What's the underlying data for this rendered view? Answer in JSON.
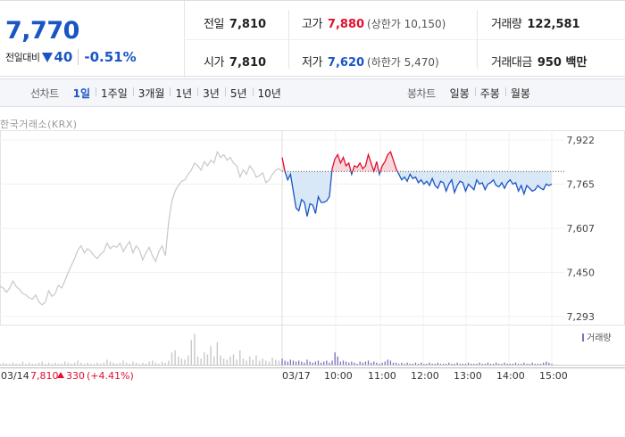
{
  "quote": {
    "price": "7,770",
    "change_label": "전일대비",
    "change": "40",
    "change_pct": "-0.51%"
  },
  "stats": {
    "prev_close": {
      "label": "전일",
      "value": "7,810"
    },
    "high": {
      "label": "고가",
      "value": "7,880",
      "sub": "(상한가 10,150)"
    },
    "volume": {
      "label": "거래량",
      "value": "122,581"
    },
    "open": {
      "label": "시가",
      "value": "7,810"
    },
    "low": {
      "label": "저가",
      "value": "7,620",
      "sub": "(하한가 5,470)"
    },
    "turnover": {
      "label": "거래대금",
      "value": "950 백만"
    }
  },
  "tabs": {
    "line_title": "선차트",
    "line_items": [
      "1일",
      "1주일",
      "3개월",
      "1년",
      "3년",
      "5년",
      "10년"
    ],
    "line_active": "1일",
    "candle_title": "봉차트",
    "candle_items": [
      "일봉",
      "주봉",
      "월봉"
    ]
  },
  "chart": {
    "source_label": "한국거래소(KRX)",
    "volume_legend": "거래량",
    "prev_day_info": {
      "date": "03/14",
      "price": "7,810",
      "change": "330",
      "pct": "(+4.41%)"
    },
    "colors": {
      "up": "#e0102e",
      "down": "#1a55c4",
      "prev_day": "#c8c8c8",
      "fill_down": "#d5e5f5",
      "fill_up": "#f8d7dc"
    }
  },
  "chart_data": {
    "type": "line",
    "title": "",
    "ylim": [
      7293,
      7922
    ],
    "yticks": [
      "7,922",
      "7,765",
      "7,607",
      "7,450",
      "7,293"
    ],
    "ytick_values": [
      7922,
      7765,
      7607,
      7450,
      7293
    ],
    "xticks": [
      "03/14",
      "03/17",
      "10:00",
      "11:00",
      "12:00",
      "13:00",
      "14:00",
      "15:00"
    ],
    "reference_price": 7810,
    "series": [
      {
        "name": "03/14",
        "values": [
          7400,
          7395,
          7380,
          7395,
          7420,
          7400,
          7390,
          7375,
          7370,
          7360,
          7355,
          7370,
          7345,
          7335,
          7345,
          7385,
          7365,
          7375,
          7405,
          7395,
          7420,
          7450,
          7475,
          7500,
          7530,
          7545,
          7520,
          7535,
          7525,
          7510,
          7500,
          7515,
          7525,
          7555,
          7535,
          7545,
          7540,
          7555,
          7525,
          7545,
          7560,
          7520,
          7545,
          7530,
          7495,
          7520,
          7540,
          7510,
          7490,
          7525,
          7545,
          7510,
          7630,
          7705,
          7740,
          7760,
          7775,
          7780,
          7800,
          7815,
          7840,
          7830,
          7815,
          7845,
          7830,
          7850,
          7840,
          7880,
          7860,
          7870,
          7850,
          7860,
          7840,
          7830,
          7790,
          7815,
          7800,
          7830,
          7815,
          7790,
          7795,
          7805,
          7770,
          7780,
          7800,
          7815,
          7820,
          7810
        ]
      },
      {
        "name": "03/17",
        "values": [
          7860,
          7810,
          7780,
          7800,
          7740,
          7680,
          7670,
          7710,
          7700,
          7650,
          7695,
          7690,
          7660,
          7720,
          7700,
          7700,
          7705,
          7720,
          7820,
          7855,
          7870,
          7840,
          7860,
          7830,
          7840,
          7800,
          7830,
          7825,
          7840,
          7820,
          7830,
          7870,
          7840,
          7810,
          7845,
          7800,
          7830,
          7845,
          7870,
          7880,
          7850,
          7820,
          7800,
          7780,
          7790,
          7775,
          7800,
          7785,
          7790,
          7770,
          7780,
          7765,
          7775,
          7760,
          7785,
          7760,
          7750,
          7775,
          7770,
          7740,
          7765,
          7780,
          7735,
          7760,
          7775,
          7770,
          7740,
          7765,
          7755,
          7745,
          7780,
          7765,
          7770,
          7745,
          7765,
          7770,
          7780,
          7760,
          7755,
          7770,
          7750,
          7770,
          7780,
          7765,
          7770,
          7740,
          7760,
          7730,
          7760,
          7750,
          7740,
          7745,
          7760,
          7750,
          7745,
          7765,
          7760,
          7765
        ]
      }
    ],
    "volume_series": [
      {
        "name": "03/14",
        "values": [
          1,
          2,
          1,
          1,
          2,
          1,
          1,
          3,
          1,
          2,
          1,
          1,
          2,
          3,
          1,
          2,
          1,
          2,
          1,
          1,
          3,
          2,
          1,
          2,
          4,
          2,
          1,
          2,
          1,
          1,
          2,
          1,
          2,
          5,
          3,
          2,
          1,
          2,
          4,
          2,
          1,
          3,
          2,
          1,
          2,
          1,
          3,
          4,
          2,
          1,
          3,
          2,
          4,
          12,
          14,
          8,
          6,
          5,
          9,
          24,
          30,
          8,
          6,
          12,
          10,
          18,
          8,
          22,
          9,
          6,
          5,
          8,
          10,
          5,
          14,
          6,
          4,
          8,
          5,
          9,
          4,
          6,
          4,
          3,
          7,
          5,
          4,
          2
        ]
      },
      {
        "name": "03/17",
        "values": [
          6,
          4,
          3,
          5,
          4,
          3,
          4,
          3,
          2,
          5,
          3,
          2,
          3,
          4,
          2,
          3,
          4,
          2,
          4,
          12,
          8,
          3,
          4,
          3,
          2,
          3,
          2,
          1,
          3,
          2,
          3,
          4,
          2,
          3,
          2,
          1,
          2,
          3,
          5,
          4,
          2,
          2,
          1,
          2,
          1,
          2,
          1,
          1,
          2,
          1,
          2,
          1,
          1,
          2,
          1,
          1,
          2,
          1,
          1,
          1,
          2,
          1,
          1,
          2,
          1,
          1,
          1,
          2,
          1,
          1,
          1,
          2,
          1,
          1,
          2,
          1,
          1,
          2,
          1,
          1,
          2,
          1,
          1,
          1,
          2,
          1,
          1,
          2,
          1,
          1,
          2,
          1,
          1,
          1,
          2,
          3,
          2,
          1
        ]
      }
    ],
    "volume_ymax": 32
  }
}
